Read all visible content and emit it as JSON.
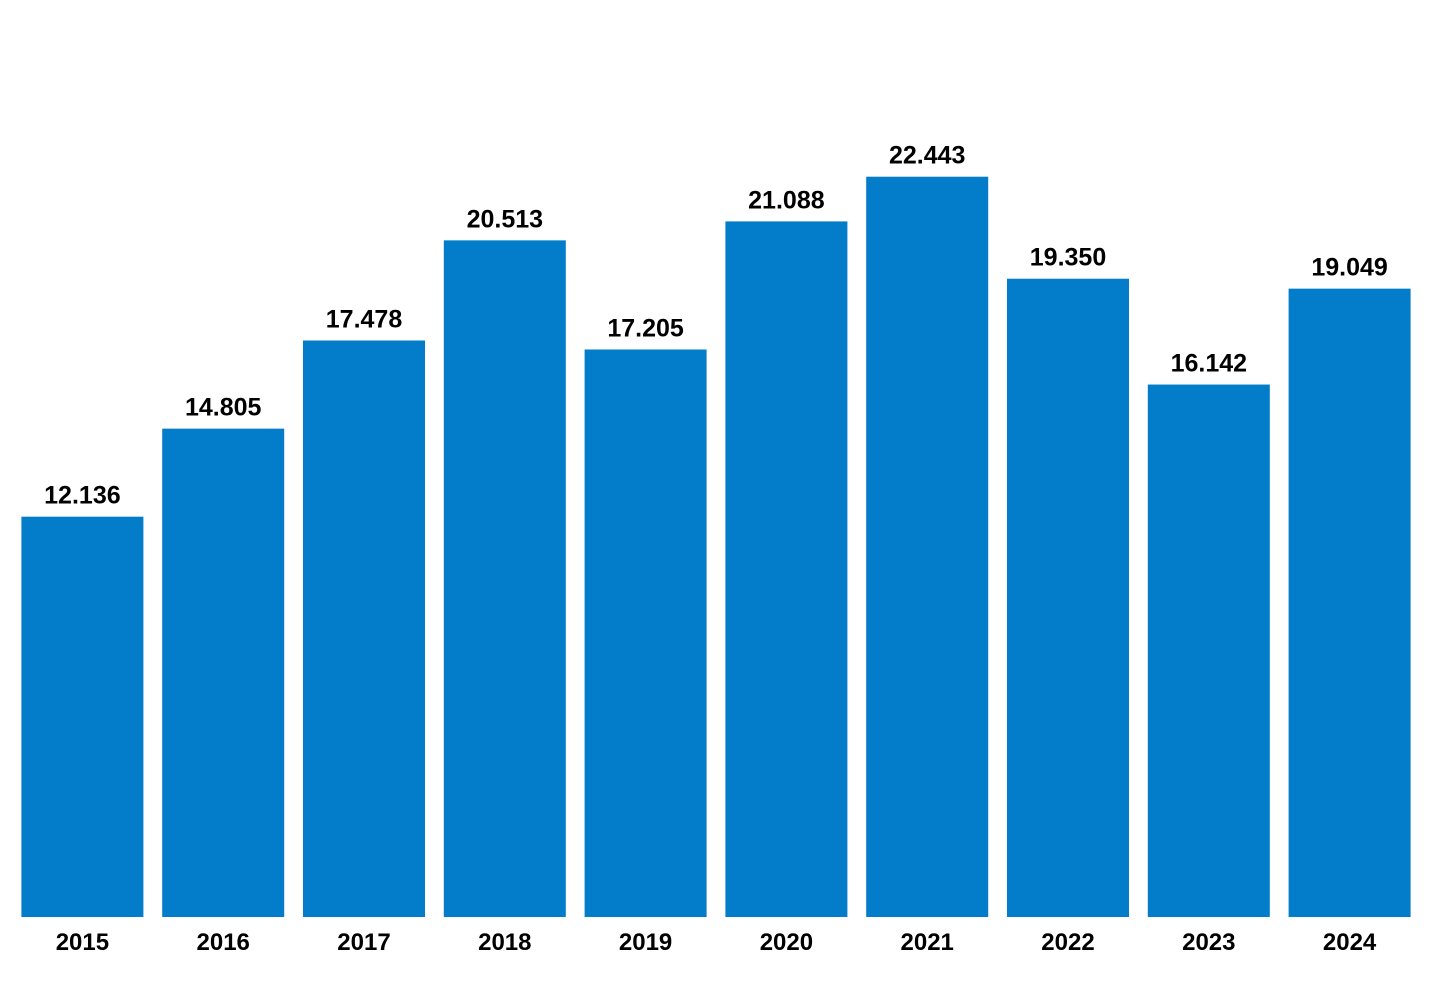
{
  "chart_data": {
    "type": "bar",
    "title": "",
    "xlabel": "",
    "ylabel": "",
    "categories": [
      "2015",
      "2016",
      "2017",
      "2018",
      "2019",
      "2020",
      "2021",
      "2022",
      "2023",
      "2024"
    ],
    "values": [
      12.136,
      14.805,
      17.478,
      20.513,
      17.205,
      21.088,
      22.443,
      19.35,
      16.142,
      19.049
    ],
    "value_labels": [
      "12.136",
      "14.805",
      "17.478",
      "20.513",
      "17.205",
      "21.088",
      "22.443",
      "19.350",
      "16.142",
      "19.049"
    ],
    "ylim": [
      0,
      27.8
    ],
    "grid": false,
    "y_axis_visible": false,
    "bar_color": "#037DCA"
  }
}
